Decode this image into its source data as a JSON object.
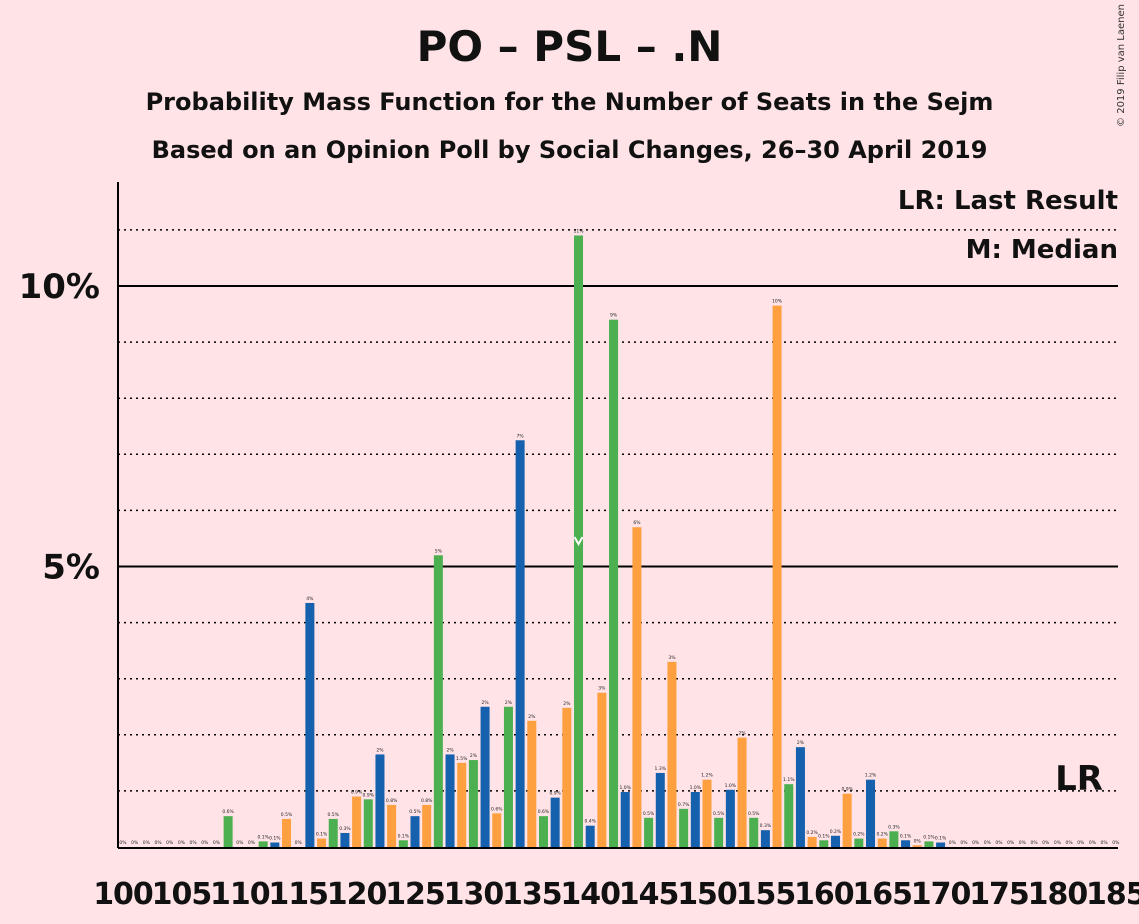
{
  "title": "PO – PSL – .N",
  "subtitle1": "Probability Mass Function for the Number of Seats in the Sejm",
  "subtitle2": "Based on an Opinion Poll by Social Changes, 26–30 April 2019",
  "copyright": "© 2019 Filip van Laenen",
  "legend": {
    "last_result": "LR: Last Result",
    "median": "M: Median",
    "lr_marker": "LR"
  },
  "colors": {
    "background": "#ffe3e6",
    "blue": "#1561ad",
    "green": "#4cb050",
    "orange": "#ffa040",
    "axis": "#000000"
  },
  "chart_data": {
    "type": "bar",
    "x_start": 100,
    "x_end": 185,
    "y_ticks": [
      {
        "value": 5,
        "label": "5%"
      },
      {
        "value": 10,
        "label": "10%"
      }
    ],
    "x_tick_labels": [
      "100",
      "105",
      "110",
      "115",
      "120",
      "125",
      "130",
      "135",
      "140",
      "145",
      "150",
      "155",
      "160",
      "165",
      "170",
      "175",
      "180",
      "185"
    ],
    "ylim": [
      0,
      11.8
    ],
    "median_seat": 139,
    "last_result_seat": 183,
    "bars": [
      {
        "seat": 100,
        "value": 0.0,
        "label": "0%",
        "color": "blue"
      },
      {
        "seat": 101,
        "value": 0.0,
        "label": "0%",
        "color": "green"
      },
      {
        "seat": 102,
        "value": 0.0,
        "label": "0%",
        "color": "orange"
      },
      {
        "seat": 103,
        "value": 0.0,
        "label": "0%",
        "color": "blue"
      },
      {
        "seat": 104,
        "value": 0.0,
        "label": "0%",
        "color": "green"
      },
      {
        "seat": 105,
        "value": 0.0,
        "label": "0%",
        "color": "orange"
      },
      {
        "seat": 106,
        "value": 0.0,
        "label": "0%",
        "color": "blue"
      },
      {
        "seat": 107,
        "value": 0.0,
        "label": "0%",
        "color": "orange"
      },
      {
        "seat": 108,
        "value": 0.0,
        "label": "0%",
        "color": "blue"
      },
      {
        "seat": 109,
        "value": 0.55,
        "label": "0.6%",
        "color": "green"
      },
      {
        "seat": 110,
        "value": 0.0,
        "label": "0%",
        "color": "blue"
      },
      {
        "seat": 111,
        "value": 0.0,
        "label": "0%",
        "color": "orange"
      },
      {
        "seat": 112,
        "value": 0.1,
        "label": "0.1%",
        "color": "green"
      },
      {
        "seat": 113,
        "value": 0.08,
        "label": "0.1%",
        "color": "blue"
      },
      {
        "seat": 114,
        "value": 0.5,
        "label": "0.5%",
        "color": "orange"
      },
      {
        "seat": 115,
        "value": 0.0,
        "label": "0%",
        "color": "green"
      },
      {
        "seat": 116,
        "value": 4.35,
        "label": "4%",
        "color": "blue"
      },
      {
        "seat": 117,
        "value": 0.15,
        "label": "0.1%",
        "color": "orange"
      },
      {
        "seat": 118,
        "value": 0.5,
        "label": "0.5%",
        "color": "green"
      },
      {
        "seat": 119,
        "value": 0.25,
        "label": "0.3%",
        "color": "blue"
      },
      {
        "seat": 120,
        "value": 0.9,
        "label": "0.9%",
        "color": "orange"
      },
      {
        "seat": 121,
        "value": 0.85,
        "label": "0.9%",
        "color": "green"
      },
      {
        "seat": 122,
        "value": 1.65,
        "label": "2%",
        "color": "blue"
      },
      {
        "seat": 123,
        "value": 0.75,
        "label": "0.8%",
        "color": "orange"
      },
      {
        "seat": 124,
        "value": 0.12,
        "label": "0.1%",
        "color": "green"
      },
      {
        "seat": 125,
        "value": 0.55,
        "label": "0.5%",
        "color": "blue"
      },
      {
        "seat": 126,
        "value": 0.75,
        "label": "0.8%",
        "color": "orange"
      },
      {
        "seat": 127,
        "value": 5.2,
        "label": "5%",
        "color": "green"
      },
      {
        "seat": 128,
        "value": 1.65,
        "label": "2%",
        "color": "blue"
      },
      {
        "seat": 129,
        "value": 1.5,
        "label": "1.5%",
        "color": "orange"
      },
      {
        "seat": 130,
        "value": 1.55,
        "label": "2%",
        "color": "green"
      },
      {
        "seat": 131,
        "value": 2.5,
        "label": "2%",
        "color": "blue"
      },
      {
        "seat": 132,
        "value": 0.6,
        "label": "0.6%",
        "color": "orange"
      },
      {
        "seat": 133,
        "value": 2.5,
        "label": "2%",
        "color": "green"
      },
      {
        "seat": 134,
        "value": 7.25,
        "label": "7%",
        "color": "blue"
      },
      {
        "seat": 135,
        "value": 2.25,
        "label": "2%",
        "color": "orange"
      },
      {
        "seat": 136,
        "value": 0.55,
        "label": "0.6%",
        "color": "green"
      },
      {
        "seat": 137,
        "value": 0.88,
        "label": "0.9%",
        "color": "blue"
      },
      {
        "seat": 138,
        "value": 2.48,
        "label": "2%",
        "color": "orange"
      },
      {
        "seat": 139,
        "value": 10.9,
        "label": "11%",
        "color": "green"
      },
      {
        "seat": 140,
        "value": 0.38,
        "label": "0.4%",
        "color": "blue"
      },
      {
        "seat": 141,
        "value": 2.75,
        "label": "3%",
        "color": "orange"
      },
      {
        "seat": 142,
        "value": 9.4,
        "label": "9%",
        "color": "green"
      },
      {
        "seat": 143,
        "value": 0.98,
        "label": "1.0%",
        "color": "blue"
      },
      {
        "seat": 144,
        "value": 5.7,
        "label": "6%",
        "color": "orange"
      },
      {
        "seat": 145,
        "value": 0.52,
        "label": "0.5%",
        "color": "green"
      },
      {
        "seat": 146,
        "value": 1.32,
        "label": "1.3%",
        "color": "blue"
      },
      {
        "seat": 147,
        "value": 3.3,
        "label": "3%",
        "color": "orange"
      },
      {
        "seat": 148,
        "value": 0.68,
        "label": "0.7%",
        "color": "green"
      },
      {
        "seat": 149,
        "value": 0.98,
        "label": "1.0%",
        "color": "blue"
      },
      {
        "seat": 150,
        "value": 1.2,
        "label": "1.2%",
        "color": "orange"
      },
      {
        "seat": 151,
        "value": 0.52,
        "label": "0.5%",
        "color": "green"
      },
      {
        "seat": 152,
        "value": 1.02,
        "label": "1.0%",
        "color": "blue"
      },
      {
        "seat": 153,
        "value": 1.95,
        "label": "2%",
        "color": "orange"
      },
      {
        "seat": 154,
        "value": 0.52,
        "label": "0.5%",
        "color": "green"
      },
      {
        "seat": 155,
        "value": 0.3,
        "label": "0.3%",
        "color": "blue"
      },
      {
        "seat": 156,
        "value": 9.65,
        "label": "10%",
        "color": "orange"
      },
      {
        "seat": 157,
        "value": 1.12,
        "label": "1.1%",
        "color": "green"
      },
      {
        "seat": 158,
        "value": 1.78,
        "label": "2%",
        "color": "blue"
      },
      {
        "seat": 159,
        "value": 0.18,
        "label": "0.2%",
        "color": "orange"
      },
      {
        "seat": 160,
        "value": 0.12,
        "label": "0.1%",
        "color": "green"
      },
      {
        "seat": 161,
        "value": 0.2,
        "label": "0.2%",
        "color": "blue"
      },
      {
        "seat": 162,
        "value": 0.95,
        "label": "0.9%",
        "color": "orange"
      },
      {
        "seat": 163,
        "value": 0.15,
        "label": "0.2%",
        "color": "green"
      },
      {
        "seat": 164,
        "value": 1.2,
        "label": "1.2%",
        "color": "blue"
      },
      {
        "seat": 165,
        "value": 0.15,
        "label": "0.2%",
        "color": "orange"
      },
      {
        "seat": 166,
        "value": 0.28,
        "label": "0.3%",
        "color": "green"
      },
      {
        "seat": 167,
        "value": 0.12,
        "label": "0.1%",
        "color": "blue"
      },
      {
        "seat": 168,
        "value": 0.03,
        "label": "0%",
        "color": "orange"
      },
      {
        "seat": 169,
        "value": 0.1,
        "label": "0.1%",
        "color": "green"
      },
      {
        "seat": 170,
        "value": 0.08,
        "label": "0.1%",
        "color": "blue"
      },
      {
        "seat": 171,
        "value": 0.0,
        "label": "0%",
        "color": "green"
      },
      {
        "seat": 172,
        "value": 0.0,
        "label": "0%",
        "color": "orange"
      },
      {
        "seat": 173,
        "value": 0.0,
        "label": "0%",
        "color": "blue"
      },
      {
        "seat": 174,
        "value": 0.0,
        "label": "0%",
        "color": "green"
      },
      {
        "seat": 175,
        "value": 0.0,
        "label": "0%",
        "color": "orange"
      },
      {
        "seat": 176,
        "value": 0.0,
        "label": "0%",
        "color": "blue"
      },
      {
        "seat": 177,
        "value": 0.0,
        "label": "0%",
        "color": "orange"
      },
      {
        "seat": 178,
        "value": 0.0,
        "label": "0%",
        "color": "green"
      },
      {
        "seat": 179,
        "value": 0.0,
        "label": "0%",
        "color": "blue"
      },
      {
        "seat": 180,
        "value": 0.0,
        "label": "0%",
        "color": "orange"
      },
      {
        "seat": 181,
        "value": 0.0,
        "label": "0%",
        "color": "green"
      },
      {
        "seat": 182,
        "value": 0.0,
        "label": "0%",
        "color": "blue"
      },
      {
        "seat": 183,
        "value": 0.0,
        "label": "0%",
        "color": "orange"
      },
      {
        "seat": 184,
        "value": 0.0,
        "label": "0%",
        "color": "green"
      },
      {
        "seat": 185,
        "value": 0.0,
        "label": "0%",
        "color": "blue"
      }
    ]
  }
}
